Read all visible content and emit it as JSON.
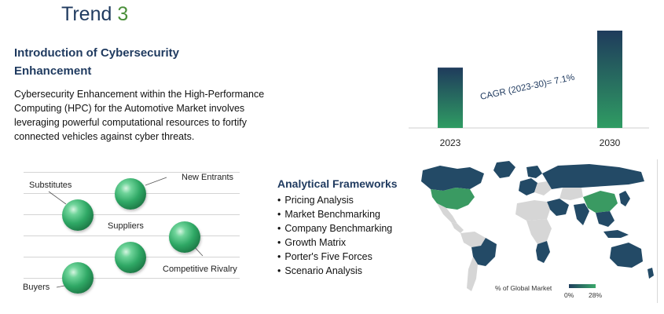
{
  "header": {
    "prefix": "Trend ",
    "number": "3"
  },
  "intro": {
    "title": "Introduction of Cybersecurity Enhancement",
    "body": "Cybersecurity Enhancement within the High-Performance Computing (HPC) for the Automotive Market involves leveraging powerful computational resources to fortify connected vehicles against cyber threats."
  },
  "five_forces": {
    "substitutes": "Substitutes",
    "new_entrants": "New Entrants",
    "suppliers": "Suppliers",
    "competitive_rivalry": "Competitive Rivalry",
    "buyers": "Buyers"
  },
  "frameworks": {
    "title": "Analytical Frameworks",
    "items": [
      "Pricing Analysis",
      "Market Benchmarking",
      "Company Benchmarking",
      "Growth Matrix",
      "Porter's Five Forces",
      "Scenario Analysis"
    ]
  },
  "chart_data": {
    "type": "bar",
    "categories": [
      "2023",
      "2030"
    ],
    "values": [
      0.62,
      1.0
    ],
    "annotation": "CAGR (2023-30)= 7.1%",
    "colors": {
      "top": "#1f3b5c",
      "bottom": "#2f9c63"
    }
  },
  "map": {
    "legend_label": "% of Global Market",
    "legend_min": "0%",
    "legend_max": "28%",
    "colors": {
      "dark": "#234a66",
      "green": "#3a9a62",
      "grey": "#d6d6d6"
    }
  }
}
